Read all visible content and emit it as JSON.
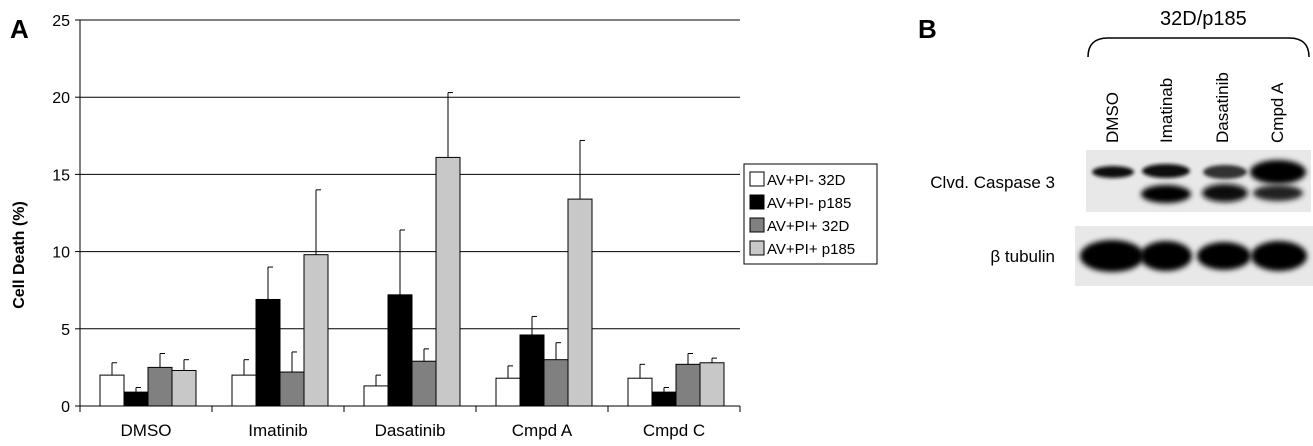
{
  "panels": {
    "a_label": "A",
    "b_label": "B"
  },
  "chart_data": {
    "type": "bar",
    "title": "",
    "xlabel": "",
    "ylabel": "Cell Death (%)",
    "ylim": [
      0,
      25
    ],
    "yticks": [
      0,
      5,
      10,
      15,
      20,
      25
    ],
    "grid": true,
    "legend_position": "right",
    "categories": [
      "DMSO",
      "Imatinib",
      "Dasatinib",
      "Cmpd A",
      "Cmpd C"
    ],
    "series": [
      {
        "name": "AV+PI- 32D",
        "color": "#ffffff",
        "values": [
          2.0,
          2.0,
          1.3,
          1.8,
          1.8
        ],
        "errors": [
          0.8,
          1.0,
          0.7,
          0.8,
          0.9
        ]
      },
      {
        "name": "AV+PI- p185",
        "color": "#000000",
        "values": [
          0.9,
          6.9,
          7.2,
          4.6,
          0.9
        ],
        "errors": [
          0.3,
          2.1,
          4.2,
          1.2,
          0.3
        ]
      },
      {
        "name": "AV+PI+ 32D",
        "color": "#808080",
        "values": [
          2.5,
          2.2,
          2.9,
          3.0,
          2.7
        ],
        "errors": [
          0.9,
          1.3,
          0.8,
          1.1,
          0.7
        ]
      },
      {
        "name": "AV+PI+ p185",
        "color": "#c8c8c8",
        "values": [
          2.3,
          9.8,
          16.1,
          13.4,
          2.8
        ],
        "errors": [
          0.7,
          4.2,
          4.2,
          3.8,
          0.3
        ]
      }
    ]
  },
  "blot": {
    "title": "32D/p185",
    "lanes": [
      "DMSO",
      "Imatinab",
      "Dasatinib",
      "Cmpd A"
    ],
    "rows": [
      {
        "label": "Clvd. Caspase 3"
      },
      {
        "label": "β tubulin"
      }
    ]
  }
}
